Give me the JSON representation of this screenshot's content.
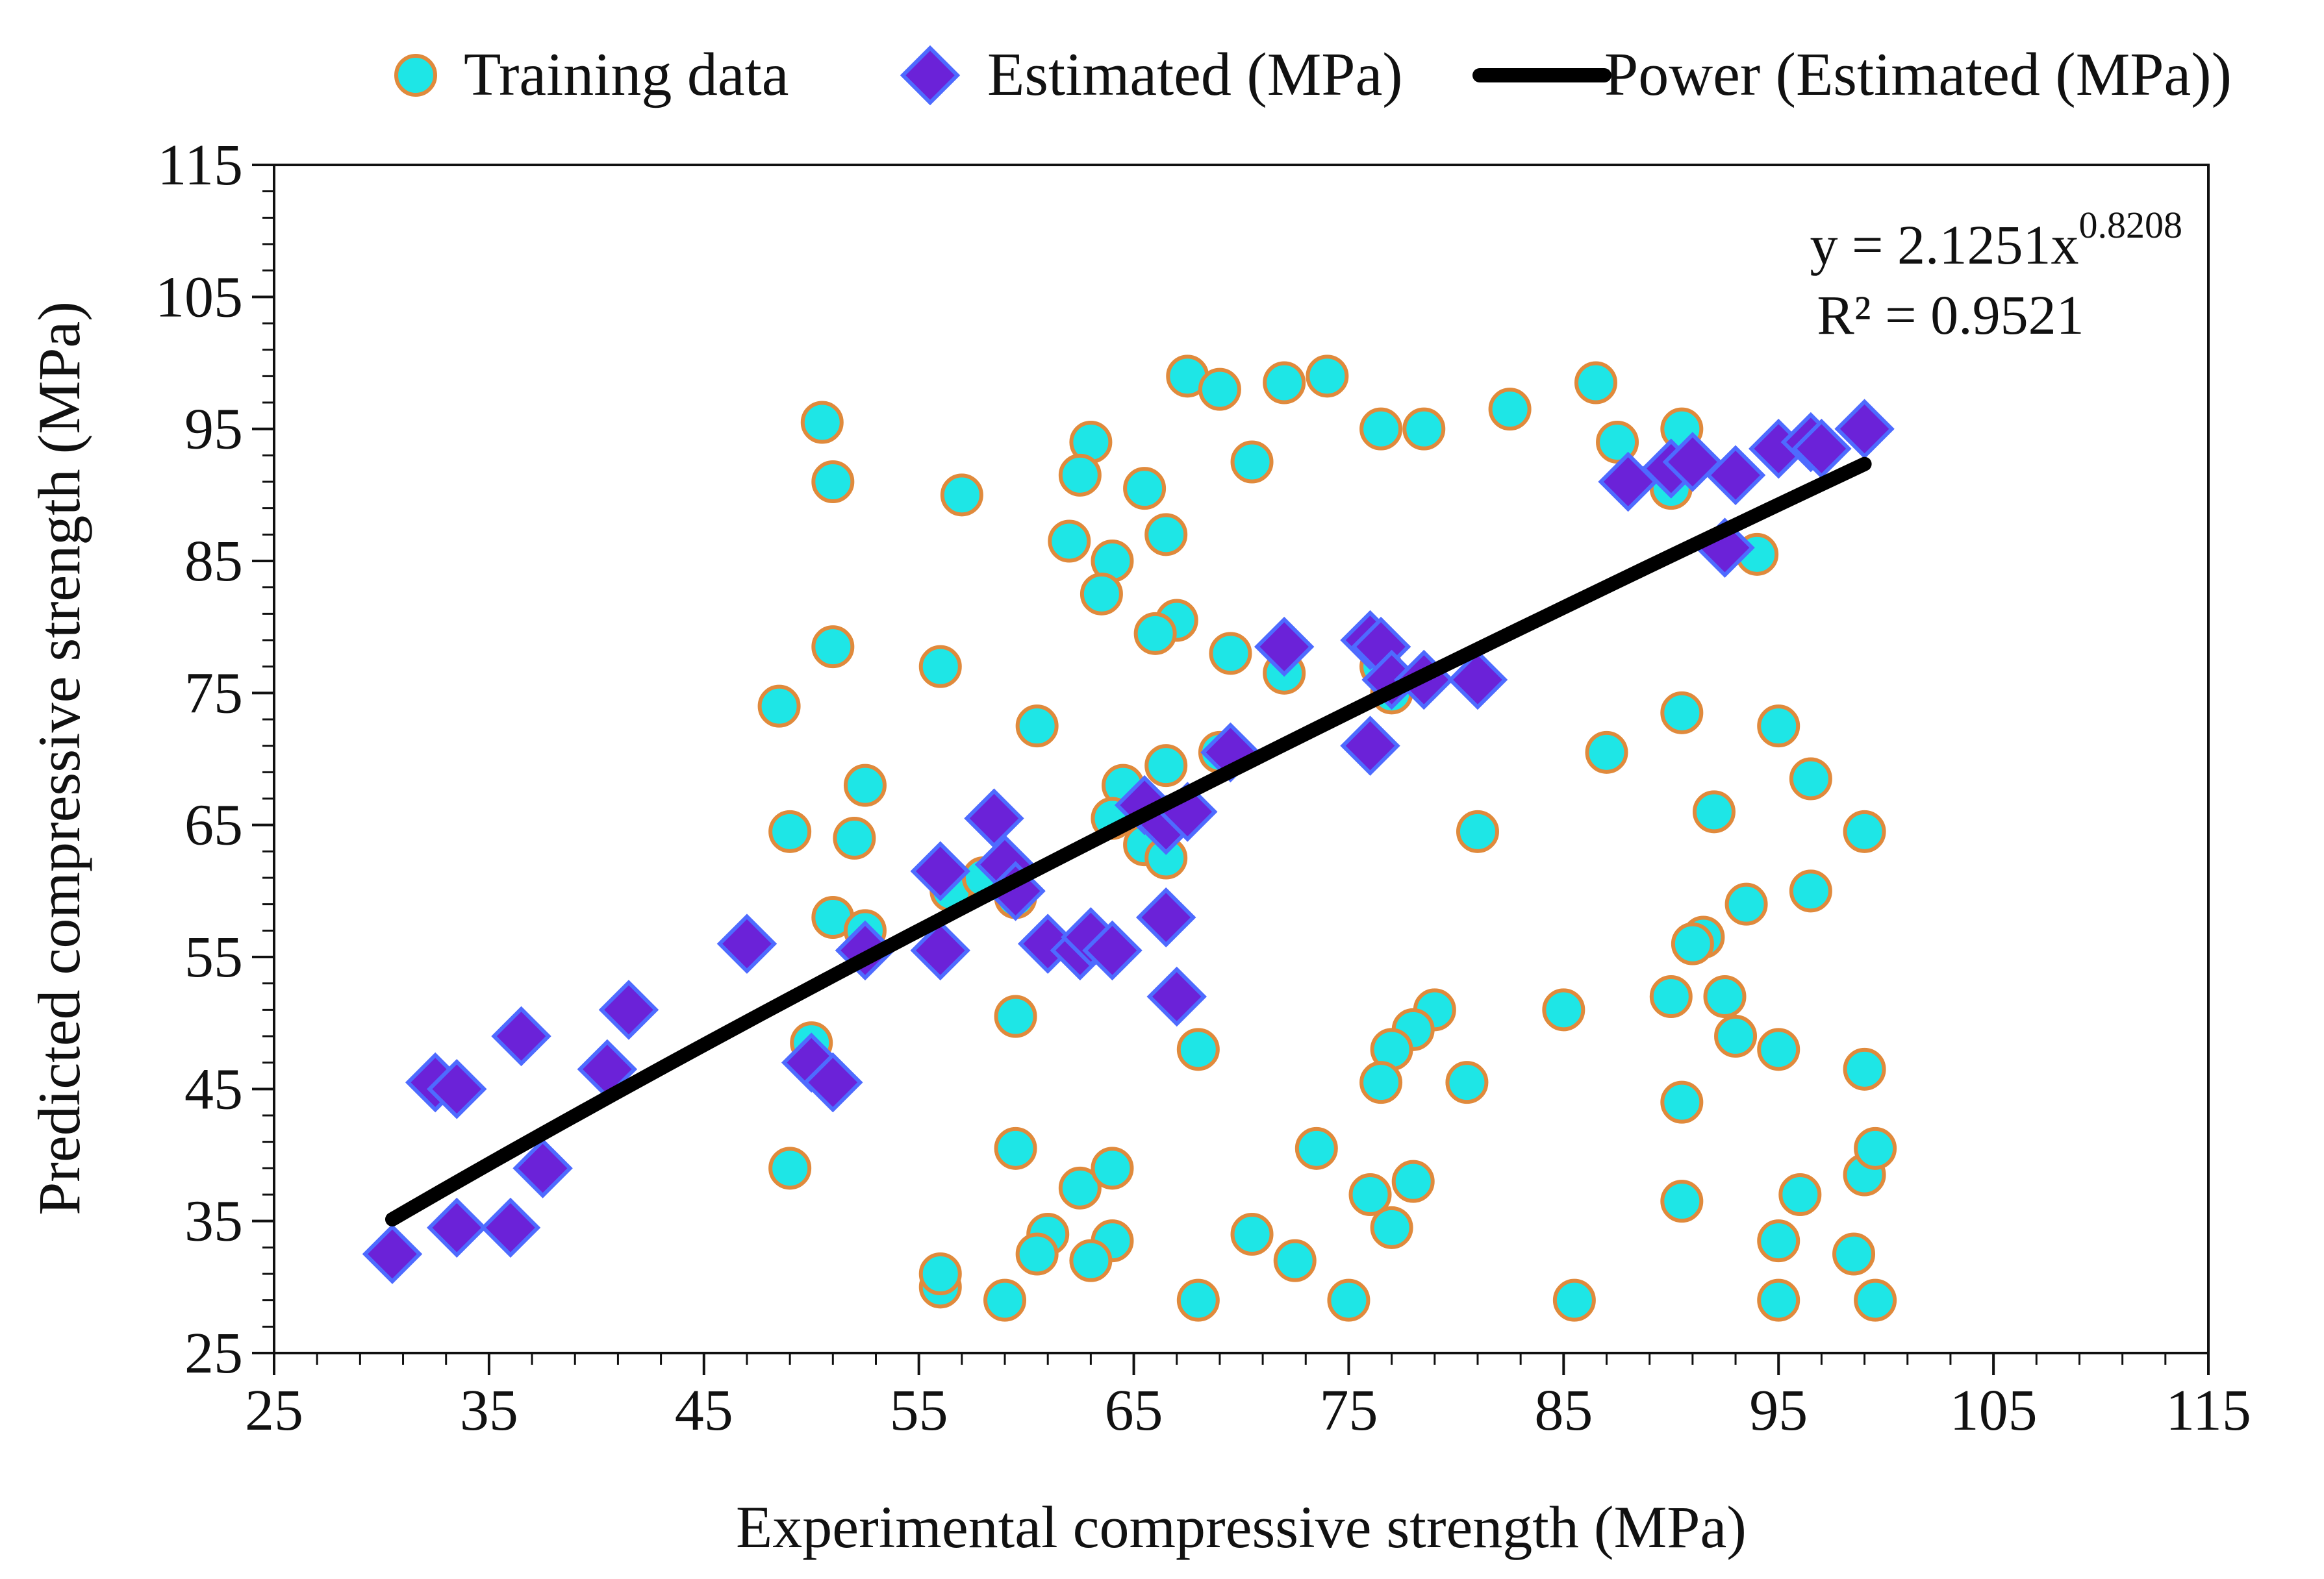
{
  "chart_data": {
    "type": "scatter",
    "title": "",
    "xlabel": "Experimental compressive strength (MPa)",
    "ylabel": "Predicted compressive strength (MPa)",
    "xlim": [
      25,
      115
    ],
    "ylim": [
      25,
      115
    ],
    "xticks": [
      25,
      35,
      45,
      55,
      65,
      75,
      85,
      95,
      105,
      115
    ],
    "yticks": [
      25,
      35,
      45,
      55,
      65,
      75,
      85,
      95,
      105,
      115
    ],
    "grid": false,
    "legend_position": "top",
    "series": [
      {
        "name": "Training data",
        "marker": "circle",
        "color": "#1EE6E6",
        "edge_color": "#E08A3C",
        "points": [
          [
            50.5,
            95.5
          ],
          [
            51.0,
            91.0
          ],
          [
            57.0,
            90.0
          ],
          [
            67.5,
            99.0
          ],
          [
            69.0,
            98.0
          ],
          [
            72.0,
            98.5
          ],
          [
            74.0,
            99.0
          ],
          [
            86.5,
            98.5
          ],
          [
            82.5,
            96.5
          ],
          [
            76.5,
            95.0
          ],
          [
            78.5,
            95.0
          ],
          [
            70.5,
            92.5
          ],
          [
            63.0,
            94.0
          ],
          [
            62.5,
            91.5
          ],
          [
            65.5,
            90.5
          ],
          [
            62.0,
            86.5
          ],
          [
            64.0,
            85.0
          ],
          [
            66.5,
            87.0
          ],
          [
            63.5,
            82.5
          ],
          [
            67.0,
            80.5
          ],
          [
            66.0,
            79.5
          ],
          [
            51.0,
            78.5
          ],
          [
            56.0,
            77.0
          ],
          [
            69.5,
            78.0
          ],
          [
            72.0,
            76.5
          ],
          [
            48.5,
            74.0
          ],
          [
            60.5,
            72.5
          ],
          [
            49.0,
            64.5
          ],
          [
            52.0,
            64.0
          ],
          [
            52.5,
            68.0
          ],
          [
            64.5,
            68.0
          ],
          [
            66.5,
            69.5
          ],
          [
            69.0,
            70.5
          ],
          [
            87.5,
            94.0
          ],
          [
            90.5,
            95.0
          ],
          [
            90.0,
            90.5
          ],
          [
            94.0,
            85.5
          ],
          [
            87.0,
            70.5
          ],
          [
            90.5,
            73.5
          ],
          [
            95.0,
            72.5
          ],
          [
            96.5,
            68.5
          ],
          [
            92.0,
            66.0
          ],
          [
            99.0,
            64.5
          ],
          [
            96.5,
            60.0
          ],
          [
            93.5,
            59.0
          ],
          [
            81.0,
            64.5
          ],
          [
            76.5,
            77.0
          ],
          [
            77.0,
            75.0
          ],
          [
            51.0,
            58.0
          ],
          [
            52.5,
            57.0
          ],
          [
            56.5,
            60.0
          ],
          [
            58.0,
            61.0
          ],
          [
            59.5,
            59.5
          ],
          [
            64.0,
            65.5
          ],
          [
            65.5,
            63.5
          ],
          [
            66.5,
            62.5
          ],
          [
            91.5,
            56.5
          ],
          [
            91.0,
            56.0
          ],
          [
            90.0,
            52.0
          ],
          [
            92.5,
            52.0
          ],
          [
            93.0,
            49.0
          ],
          [
            85.0,
            51.0
          ],
          [
            79.0,
            51.0
          ],
          [
            78.0,
            49.5
          ],
          [
            77.0,
            48.0
          ],
          [
            76.5,
            45.5
          ],
          [
            80.5,
            45.5
          ],
          [
            68.0,
            48.0
          ],
          [
            59.5,
            50.5
          ],
          [
            50.0,
            48.5
          ],
          [
            49.0,
            39.0
          ],
          [
            95.0,
            48.0
          ],
          [
            99.0,
            46.5
          ],
          [
            90.5,
            44.0
          ],
          [
            90.5,
            36.5
          ],
          [
            96.0,
            37.0
          ],
          [
            99.0,
            38.5
          ],
          [
            99.5,
            40.5
          ],
          [
            98.5,
            32.5
          ],
          [
            95.0,
            33.5
          ],
          [
            95.0,
            29.0
          ],
          [
            99.5,
            29.0
          ],
          [
            85.5,
            29.0
          ],
          [
            75.0,
            29.0
          ],
          [
            68.0,
            29.0
          ],
          [
            59.0,
            29.0
          ],
          [
            56.0,
            30.0
          ],
          [
            56.0,
            31.0
          ],
          [
            59.5,
            40.5
          ],
          [
            62.5,
            37.5
          ],
          [
            64.0,
            39.0
          ],
          [
            73.5,
            40.5
          ],
          [
            76.0,
            37.0
          ],
          [
            78.0,
            38.0
          ],
          [
            77.0,
            34.5
          ],
          [
            70.5,
            34.0
          ],
          [
            72.5,
            32.0
          ],
          [
            64.0,
            33.5
          ],
          [
            63.0,
            32.0
          ],
          [
            61.0,
            34.0
          ],
          [
            60.5,
            32.5
          ]
        ]
      },
      {
        "name": "Estimated (MPa)",
        "marker": "diamond",
        "color": "#6B22D8",
        "edge_color": "#4E6BFF",
        "points": [
          [
            30.5,
            32.5
          ],
          [
            33.5,
            34.5
          ],
          [
            36.0,
            34.5
          ],
          [
            37.5,
            39.0
          ],
          [
            32.5,
            45.5
          ],
          [
            33.5,
            45.0
          ],
          [
            36.5,
            49.0
          ],
          [
            40.5,
            46.5
          ],
          [
            41.5,
            51.0
          ],
          [
            47.0,
            56.0
          ],
          [
            50.0,
            47.0
          ],
          [
            51.0,
            45.5
          ],
          [
            52.5,
            55.5
          ],
          [
            56.0,
            55.5
          ],
          [
            56.0,
            61.5
          ],
          [
            58.5,
            65.5
          ],
          [
            59.0,
            62.0
          ],
          [
            59.5,
            60.0
          ],
          [
            61.0,
            56.0
          ],
          [
            62.5,
            55.5
          ],
          [
            63.0,
            56.5
          ],
          [
            64.0,
            55.5
          ],
          [
            65.5,
            66.5
          ],
          [
            66.5,
            65.0
          ],
          [
            67.5,
            66.0
          ],
          [
            66.5,
            58.0
          ],
          [
            67.0,
            52.0
          ],
          [
            69.5,
            70.5
          ],
          [
            72.0,
            78.5
          ],
          [
            76.0,
            71.0
          ],
          [
            76.0,
            79.0
          ],
          [
            76.5,
            78.5
          ],
          [
            77.0,
            76.0
          ],
          [
            78.5,
            76.0
          ],
          [
            81.0,
            76.0
          ],
          [
            88.0,
            91.0
          ],
          [
            90.0,
            92.0
          ],
          [
            91.0,
            92.5
          ],
          [
            92.5,
            86.0
          ],
          [
            93.0,
            91.5
          ],
          [
            95.0,
            93.5
          ],
          [
            96.5,
            94.0
          ],
          [
            97.0,
            93.5
          ],
          [
            99.0,
            95.0
          ]
        ]
      }
    ],
    "trendline": {
      "name": "Power (Estimated (MPa))",
      "type": "power",
      "coefficient": 2.1251,
      "exponent": 0.8208,
      "x_range": [
        30.5,
        99.0
      ],
      "color": "#000000",
      "equation_prefix": "y = 2.1251x",
      "equation_exponent": "0.8208",
      "r_squared": "R² = 0.9521"
    }
  }
}
